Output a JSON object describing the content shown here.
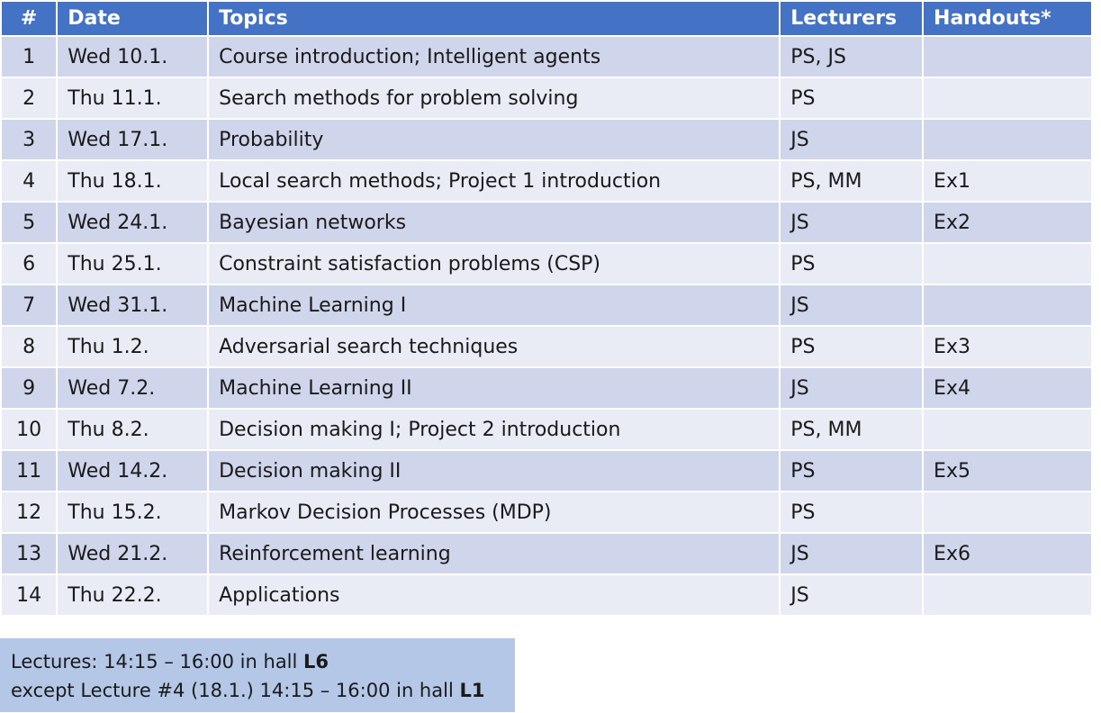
{
  "table": {
    "headers": [
      "#",
      "Date",
      "Topics",
      "Lecturers",
      "Handouts*"
    ],
    "rows": [
      [
        "1",
        "Wed 10.1.",
        "Course introduction; Intelligent agents",
        "PS, JS",
        ""
      ],
      [
        "2",
        "Thu 11.1.",
        "Search methods for problem solving",
        "PS",
        ""
      ],
      [
        "3",
        "Wed 17.1.",
        "Probability",
        "JS",
        ""
      ],
      [
        "4",
        "Thu 18.1.",
        "Local search methods; Project 1 introduction",
        "PS, MM",
        "Ex1"
      ],
      [
        "5",
        "Wed 24.1.",
        "Bayesian networks",
        "JS",
        "Ex2"
      ],
      [
        "6",
        "Thu 25.1.",
        "Constraint satisfaction problems (CSP)",
        "PS",
        ""
      ],
      [
        "7",
        "Wed 31.1.",
        "Machine Learning I",
        "JS",
        ""
      ],
      [
        "8",
        "Thu 1.2.",
        "Adversarial search techniques",
        "PS",
        "Ex3"
      ],
      [
        "9",
        "Wed 7.2.",
        "Machine Learning II",
        "JS",
        "Ex4"
      ],
      [
        "10",
        "Thu 8.2.",
        "Decision making I; Project 2 introduction",
        "PS, MM",
        ""
      ],
      [
        "11",
        "Wed 14.2.",
        "Decision making II",
        "PS",
        "Ex5"
      ],
      [
        "12",
        "Thu 15.2.",
        "Markov Decision Processes (MDP)",
        "PS",
        ""
      ],
      [
        "13",
        "Wed 21.2.",
        "Reinforcement learning",
        "JS",
        "Ex6"
      ],
      [
        "14",
        "Thu 22.2.",
        "Applications",
        "JS",
        ""
      ]
    ]
  },
  "note": {
    "line1_prefix": "Lectures: 14:15 – 16:00 in hall ",
    "line1_hall": "L6",
    "line2_prefix": "except Lecture #4 (18.1.) 14:15 – 16:00 in hall ",
    "line2_hall": "L1"
  },
  "colors": {
    "header_bg": "#4472c4",
    "row_dark": "#cfd5ea",
    "row_light": "#e9ebf5",
    "note_bg": "#b4c7e7"
  }
}
